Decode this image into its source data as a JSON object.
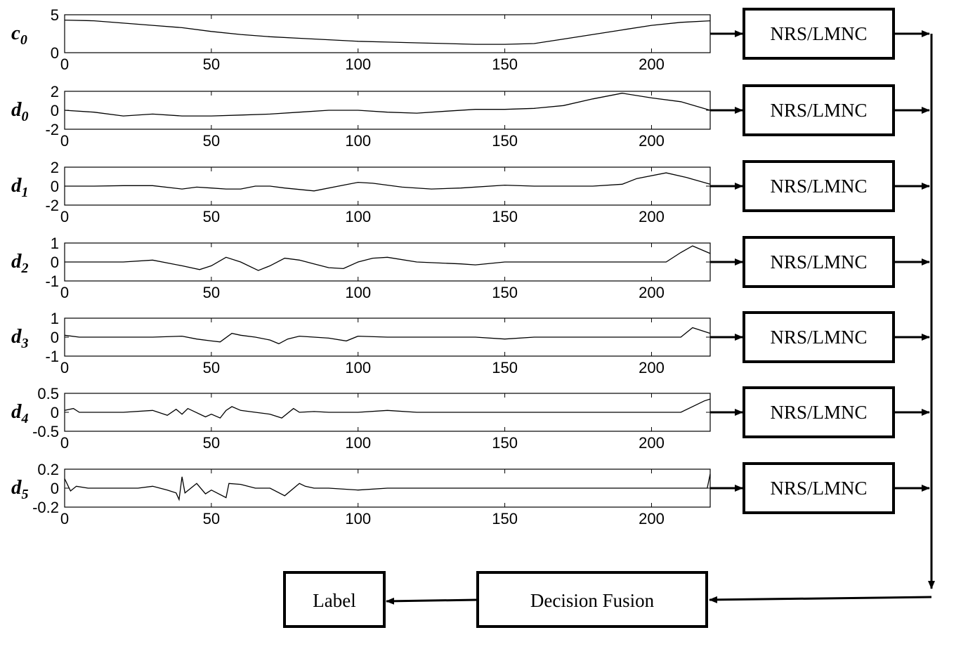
{
  "x_ticks": [
    "0",
    "50",
    "100",
    "150",
    "200"
  ],
  "x_tick_values": [
    0,
    50,
    100,
    150,
    200
  ],
  "x_range": [
    0,
    220
  ],
  "classifier_label": "NRS/LMNC",
  "fusion_label": "Decision Fusion",
  "output_label": "Label",
  "chart_data": [
    {
      "type": "line",
      "ylabel_main": "c",
      "ylabel_sub": "0",
      "ylim": [
        0,
        5
      ],
      "y_ticks": [
        "5",
        "0"
      ],
      "y_tick_values": [
        5,
        0
      ],
      "x": [
        0,
        10,
        20,
        30,
        40,
        50,
        60,
        70,
        80,
        90,
        100,
        110,
        120,
        130,
        140,
        150,
        160,
        170,
        180,
        190,
        200,
        210,
        220
      ],
      "y": [
        4.3,
        4.2,
        3.9,
        3.6,
        3.3,
        2.8,
        2.4,
        2.1,
        1.9,
        1.7,
        1.5,
        1.4,
        1.3,
        1.2,
        1.1,
        1.1,
        1.2,
        1.8,
        2.4,
        3.0,
        3.6,
        4.0,
        4.2
      ]
    },
    {
      "type": "line",
      "ylabel_main": "d",
      "ylabel_sub": "0",
      "ylim": [
        -2,
        2
      ],
      "y_ticks": [
        "2",
        "0",
        "-2"
      ],
      "y_tick_values": [
        2,
        0,
        -2
      ],
      "x": [
        0,
        10,
        20,
        30,
        40,
        50,
        60,
        70,
        80,
        90,
        100,
        110,
        120,
        130,
        140,
        150,
        160,
        170,
        180,
        190,
        200,
        210,
        220
      ],
      "y": [
        0,
        -0.2,
        -0.6,
        -0.4,
        -0.6,
        -0.6,
        -0.5,
        -0.4,
        -0.2,
        0,
        0,
        -0.2,
        -0.3,
        -0.1,
        0.1,
        0.1,
        0.2,
        0.5,
        1.2,
        1.8,
        1.3,
        0.9,
        0
      ]
    },
    {
      "type": "line",
      "ylabel_main": "d",
      "ylabel_sub": "1",
      "ylim": [
        -2,
        2
      ],
      "y_ticks": [
        "2",
        "0",
        "-2"
      ],
      "y_tick_values": [
        2,
        0,
        -2
      ],
      "x": [
        0,
        10,
        20,
        30,
        40,
        45,
        50,
        55,
        60,
        65,
        70,
        75,
        85,
        95,
        100,
        105,
        115,
        125,
        135,
        150,
        160,
        170,
        180,
        190,
        195,
        205,
        212,
        220
      ],
      "y": [
        0,
        0,
        0.05,
        0.05,
        -0.3,
        -0.1,
        -0.2,
        -0.3,
        -0.3,
        0,
        0,
        -0.2,
        -0.5,
        0.1,
        0.4,
        0.3,
        -0.1,
        -0.3,
        -0.2,
        0.1,
        0,
        0,
        0,
        0.2,
        0.8,
        1.4,
        0.9,
        0.2
      ]
    },
    {
      "type": "line",
      "ylabel_main": "d",
      "ylabel_sub": "2",
      "ylim": [
        -1,
        1
      ],
      "y_ticks": [
        "1",
        "0",
        "-1"
      ],
      "y_tick_values": [
        1,
        0,
        -1
      ],
      "x": [
        0,
        10,
        20,
        30,
        40,
        46,
        50,
        55,
        60,
        66,
        70,
        75,
        80,
        85,
        90,
        95,
        100,
        105,
        110,
        120,
        135,
        140,
        150,
        170,
        190,
        205,
        210,
        214,
        220
      ],
      "y": [
        0,
        0,
        0,
        0.1,
        -0.2,
        -0.4,
        -0.2,
        0.25,
        0,
        -0.45,
        -0.2,
        0.2,
        0.1,
        -0.1,
        -0.3,
        -0.35,
        0,
        0.2,
        0.25,
        0,
        -0.1,
        -0.15,
        0,
        0,
        0,
        0,
        0.5,
        0.85,
        0.45
      ]
    },
    {
      "type": "line",
      "ylabel_main": "d",
      "ylabel_sub": "3",
      "ylim": [
        -1,
        1
      ],
      "y_ticks": [
        "1",
        "0",
        "-1"
      ],
      "y_tick_values": [
        1,
        0,
        -1
      ],
      "x": [
        0,
        5,
        10,
        20,
        30,
        40,
        45,
        50,
        53,
        57,
        60,
        65,
        70,
        73,
        76,
        80,
        85,
        90,
        96,
        100,
        110,
        120,
        130,
        140,
        150,
        160,
        170,
        180,
        190,
        200,
        210,
        214,
        220
      ],
      "y": [
        0.1,
        0,
        0,
        0,
        0,
        0.05,
        -0.1,
        -0.2,
        -0.25,
        0.2,
        0.1,
        0,
        -0.15,
        -0.35,
        -0.1,
        0.05,
        0,
        -0.05,
        -0.2,
        0.05,
        0,
        0,
        0,
        0,
        -0.1,
        0,
        0,
        0,
        0,
        0,
        0,
        0.5,
        0.2
      ]
    },
    {
      "type": "line",
      "ylabel_main": "d",
      "ylabel_sub": "4",
      "ylim": [
        -0.5,
        0.5
      ],
      "y_ticks": [
        "0.5",
        "0",
        "-0.5"
      ],
      "y_tick_values": [
        0.5,
        0,
        -0.5
      ],
      "x": [
        0,
        3,
        5,
        10,
        20,
        30,
        35,
        38,
        40,
        42,
        48,
        50,
        53,
        55,
        57,
        60,
        65,
        70,
        74,
        78,
        80,
        85,
        90,
        100,
        110,
        120,
        140,
        160,
        180,
        200,
        210,
        218,
        220
      ],
      "y": [
        0.05,
        0.1,
        0,
        0,
        0,
        0.05,
        -0.08,
        0.08,
        -0.05,
        0.1,
        -0.12,
        -0.05,
        -0.15,
        0.05,
        0.15,
        0.05,
        0,
        -0.05,
        -0.15,
        0.1,
        0,
        0.02,
        0,
        0,
        0.05,
        0,
        0,
        0,
        0,
        0,
        0,
        0.3,
        0.35
      ]
    },
    {
      "type": "line",
      "ylabel_main": "d",
      "ylabel_sub": "5",
      "ylim": [
        -0.2,
        0.2
      ],
      "y_ticks": [
        "0.2",
        "0",
        "-0.2"
      ],
      "y_tick_values": [
        0.2,
        0,
        -0.2
      ],
      "x": [
        0,
        2,
        4,
        8,
        15,
        25,
        30,
        35,
        38,
        39,
        40,
        41,
        45,
        48,
        50,
        55,
        56,
        60,
        65,
        70,
        75,
        80,
        82,
        85,
        90,
        100,
        110,
        120,
        140,
        160,
        180,
        200,
        210,
        219,
        220
      ],
      "y": [
        0.1,
        -0.03,
        0.02,
        0,
        0,
        0,
        0.02,
        -0.02,
        -0.05,
        -0.12,
        0.12,
        -0.05,
        0.05,
        -0.06,
        -0.02,
        -0.1,
        0.05,
        0.04,
        0,
        0,
        -0.08,
        0.05,
        0.02,
        0,
        0,
        -0.02,
        0,
        0,
        0,
        0,
        0,
        0,
        0,
        0,
        0.15
      ]
    }
  ]
}
